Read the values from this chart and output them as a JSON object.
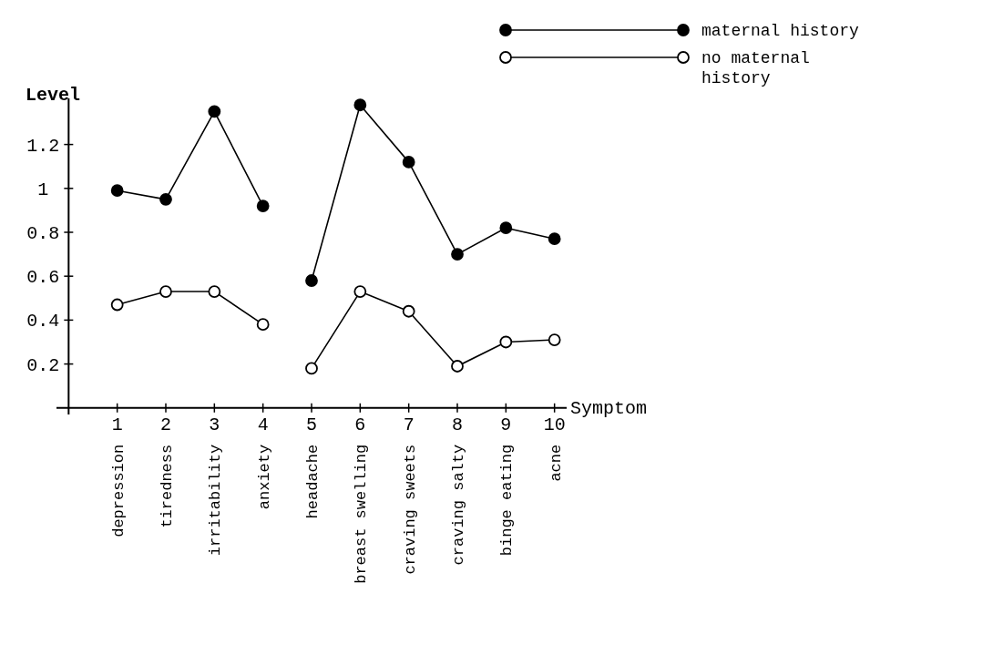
{
  "chart_data": {
    "type": "line",
    "xlabel": "Symptom",
    "ylabel": "Level",
    "x": [
      1,
      2,
      3,
      4,
      4.5,
      5,
      6,
      7,
      8,
      9,
      10
    ],
    "series": [
      {
        "name": "maternal history",
        "color": "#000000",
        "values": [
          0.99,
          0.95,
          1.35,
          0.92,
          null,
          0.58,
          1.38,
          1.12,
          0.7,
          0.82,
          0.77
        ]
      },
      {
        "name": "no maternal history",
        "color": "#000000",
        "values": [
          0.47,
          0.53,
          0.53,
          0.38,
          null,
          0.18,
          0.53,
          0.44,
          0.19,
          0.3,
          0.31
        ]
      }
    ],
    "xlim": [
      -0.25,
      10.25
    ],
    "xticks": [
      1,
      2,
      3,
      4,
      5,
      6,
      7,
      8,
      9,
      10
    ],
    "ylim": [
      -0.03,
      1.41
    ],
    "yticks": [
      0.2,
      0.4,
      0.6,
      0.8,
      1,
      1.2
    ],
    "annotations": [
      "depression",
      "tiredness",
      "irritability",
      "anxiety",
      "headache",
      "breast swelling",
      "craving sweets",
      "craving salty",
      "binge eating",
      "acne"
    ],
    "marker": "circle",
    "line_style": "solid",
    "legend": "top right",
    "grid": false
  }
}
